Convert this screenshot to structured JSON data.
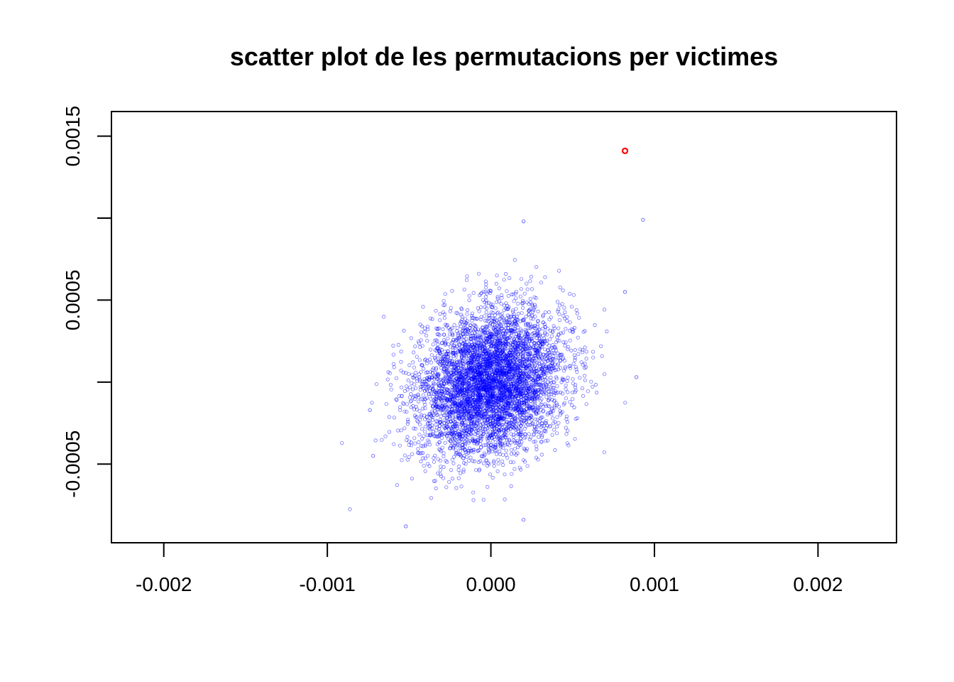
{
  "chart_data": {
    "type": "scatter",
    "title": "scatter plot de les permutacions per victimes",
    "xlabel": "",
    "ylabel": "",
    "xlim": [
      -0.00232,
      0.00248
    ],
    "ylim": [
      -0.00098,
      0.00165
    ],
    "x_ticks": [
      {
        "value": -0.002,
        "label": "-0.002"
      },
      {
        "value": -0.001,
        "label": "-0.001"
      },
      {
        "value": 0.0,
        "label": "0.000"
      },
      {
        "value": 0.001,
        "label": "0.001"
      },
      {
        "value": 0.002,
        "label": "0.002"
      }
    ],
    "y_ticks": [
      {
        "value": -0.0005,
        "label": "-0.0005"
      },
      {
        "value": 0.0,
        "label": ""
      },
      {
        "value": 0.0005,
        "label": "0.0005"
      },
      {
        "value": 0.001,
        "label": ""
      },
      {
        "value": 0.0015,
        "label": "0.0015"
      }
    ],
    "grid": false,
    "series": [
      {
        "color": "#0000ff",
        "marker": "open-circle",
        "distribution": {
          "count": 5000,
          "x_mean": 0.0,
          "y_mean": 0.0,
          "x_sd": 0.00022,
          "y_sd": 0.00022,
          "correlation": 0.2
        },
        "outliers": [
          {
            "x": 0.00093,
            "y": 0.00099
          },
          {
            "x": 0.0002,
            "y": 0.00098
          },
          {
            "x": 0.00089,
            "y": 3e-05
          },
          {
            "x": -0.00052,
            "y": -0.00088
          },
          {
            "x": 0.0002,
            "y": -0.00084
          },
          {
            "x": -0.00072,
            "y": -0.00045
          },
          {
            "x": -0.00074,
            "y": -0.00017
          },
          {
            "x": 0.00082,
            "y": 0.00055
          }
        ]
      },
      {
        "color": "#ff0000",
        "marker": "open-circle",
        "points": [
          {
            "x": 0.00082,
            "y": 0.00141
          }
        ]
      }
    ]
  }
}
